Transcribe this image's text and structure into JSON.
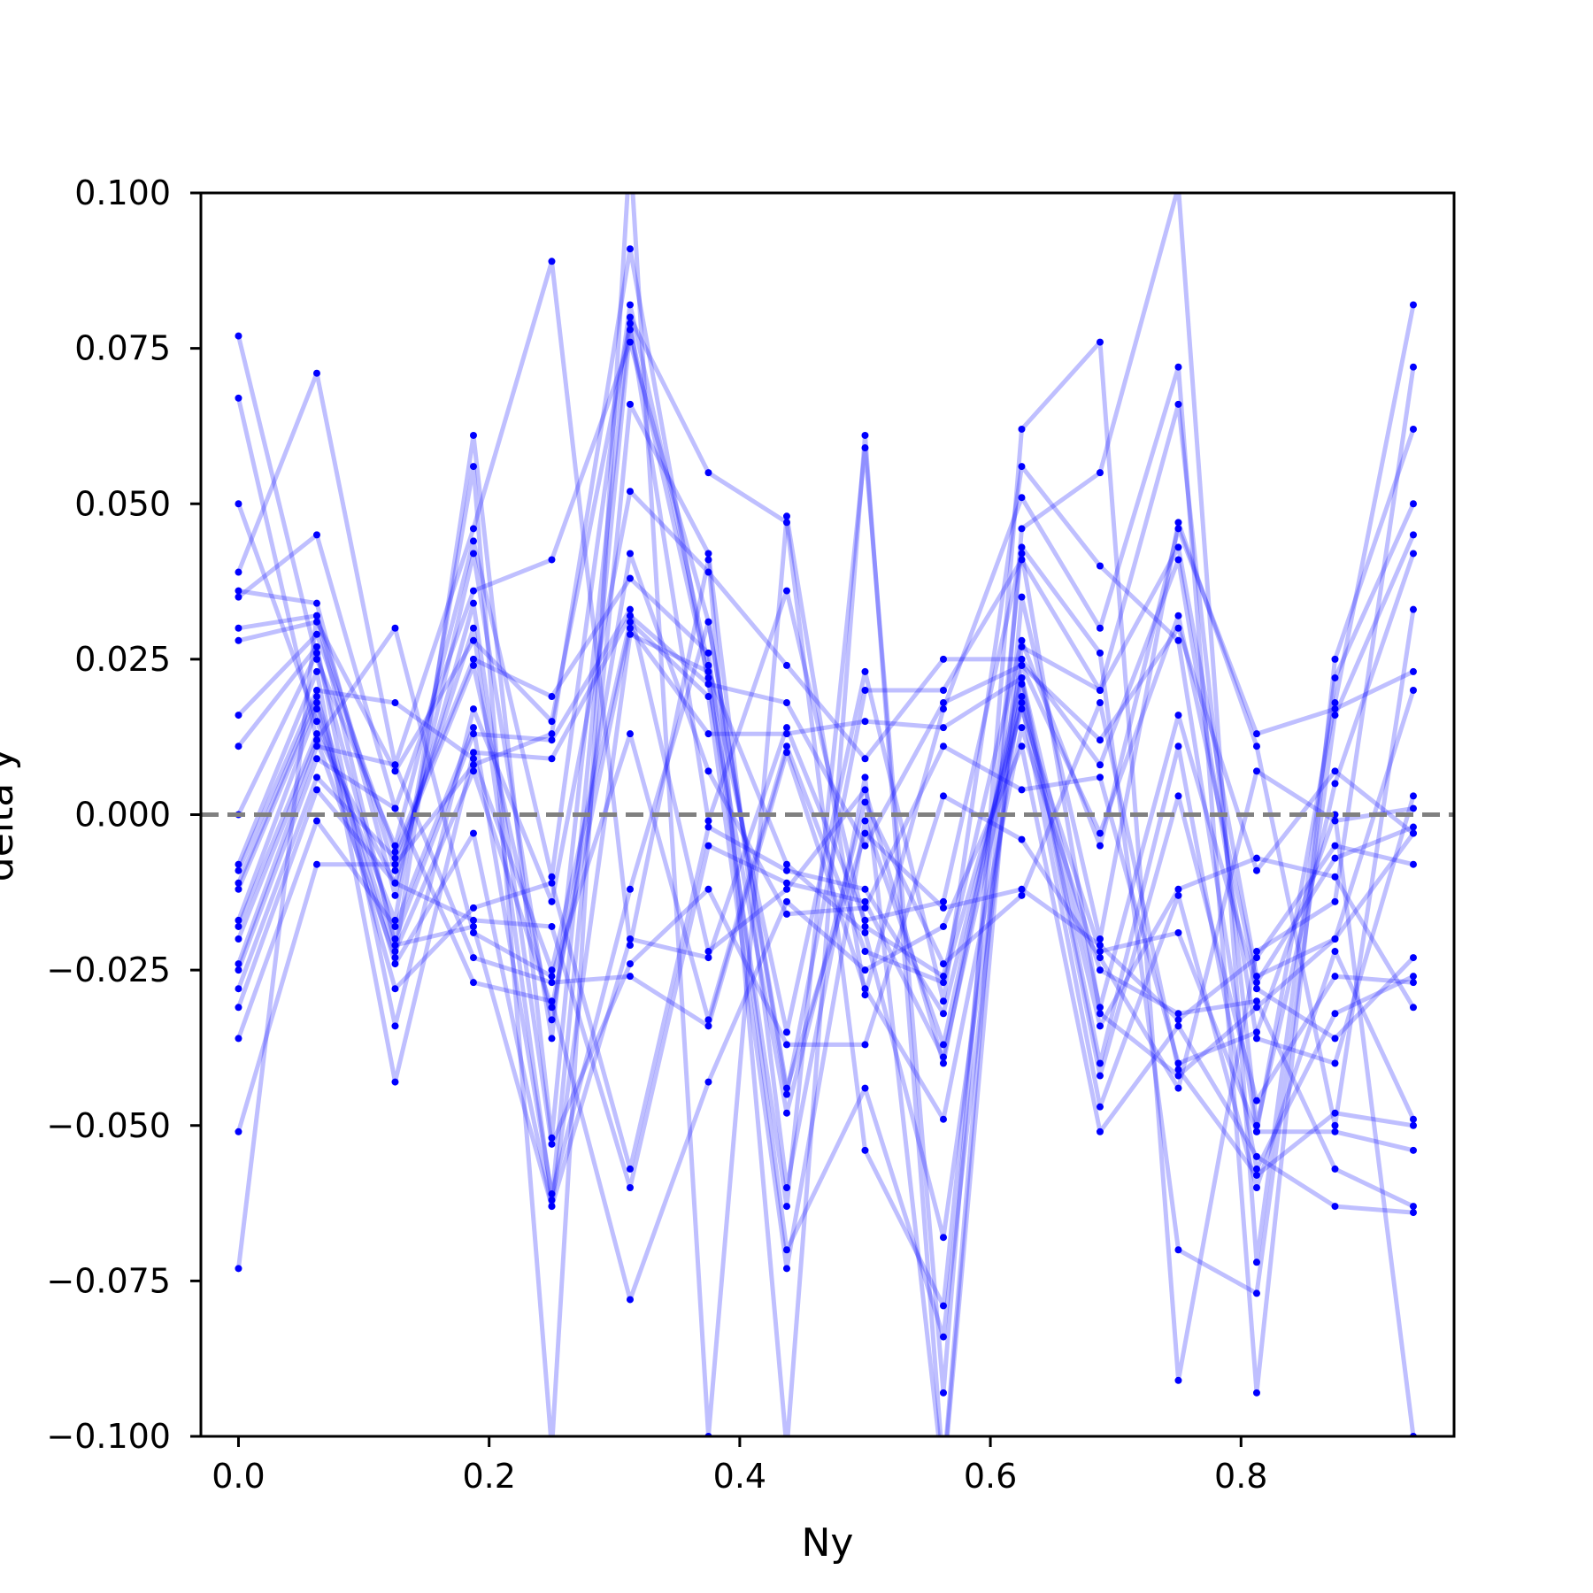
{
  "chart_data": {
    "type": "line",
    "title": "",
    "xlabel": "Ny",
    "ylabel": "delta y",
    "xlim": [
      -0.03,
      0.97
    ],
    "ylim": [
      -0.1,
      0.1
    ],
    "x_ticks": [
      0.0,
      0.2,
      0.4,
      0.6,
      0.8
    ],
    "x_tick_labels": [
      "0.0",
      "0.2",
      "0.4",
      "0.6",
      "0.8"
    ],
    "y_ticks": [
      -0.1,
      -0.075,
      -0.05,
      -0.025,
      0.0,
      0.025,
      0.05,
      0.075,
      0.1
    ],
    "y_tick_labels": [
      "−0.100",
      "−0.075",
      "−0.050",
      "−0.025",
      "0.000",
      "0.025",
      "0.050",
      "0.075",
      "0.100"
    ],
    "grid": false,
    "legend": false,
    "reference_line": {
      "y": 0.0,
      "style": "dashed",
      "color": "#808080"
    },
    "series_color": "#0000ff",
    "line_alpha": 0.25,
    "x": [
      0.0,
      0.0625,
      0.125,
      0.1875,
      0.25,
      0.3125,
      0.375,
      0.4375,
      0.5,
      0.5625,
      0.625,
      0.6875,
      0.75,
      0.8125,
      0.875,
      0.9375
    ],
    "series": [
      {
        "values": [
          0.077,
          0.025,
          -0.005,
          0.044,
          -0.01,
          0.082,
          0.024,
          -0.035,
          0.023,
          -0.03,
          0.056,
          0.04,
          0.028,
          -0.051,
          0.018,
          0.082
        ]
      },
      {
        "values": [
          0.067,
          0.012,
          -0.023,
          0.061,
          -0.052,
          0.078,
          0.022,
          -0.063,
          0.059,
          -0.093,
          0.062,
          0.076,
          -0.091,
          -0.022,
          -0.014,
          0.072
        ]
      },
      {
        "values": [
          0.05,
          0.015,
          -0.017,
          0.056,
          -0.102,
          0.107,
          -0.1,
          0.048,
          -0.029,
          0.017,
          0.051,
          0.03,
          0.072,
          -0.093,
          0.025,
          0.062
        ]
      },
      {
        "values": [
          0.039,
          0.071,
          0.008,
          0.046,
          0.089,
          -0.021,
          0.041,
          -0.102,
          0.061,
          -0.106,
          0.046,
          0.055,
          0.101,
          -0.072,
          0.022,
          0.05
        ]
      },
      {
        "values": [
          0.036,
          0.034,
          -0.013,
          0.042,
          -0.036,
          0.08,
          0.055,
          0.047,
          -0.054,
          -0.079,
          0.043,
          0.026,
          -0.07,
          -0.077,
          0.016,
          0.045
        ]
      },
      {
        "values": [
          0.035,
          0.045,
          0.001,
          0.036,
          0.041,
          0.076,
          0.031,
          -0.045,
          0.02,
          0.02,
          0.041,
          0.02,
          0.066,
          -0.05,
          0.005,
          0.042
        ]
      },
      {
        "values": [
          0.03,
          0.032,
          -0.009,
          0.03,
          -0.062,
          0.066,
          0.042,
          -0.06,
          0.006,
          -0.107,
          0.035,
          -0.02,
          0.047,
          0.011,
          -0.05,
          0.033
        ]
      },
      {
        "values": [
          0.028,
          0.031,
          0.007,
          0.028,
          0.015,
          0.079,
          -0.001,
          0.036,
          -0.018,
          -0.026,
          0.028,
          -0.005,
          0.046,
          0.013,
          0.017,
          0.023
        ]
      },
      {
        "values": [
          0.016,
          0.029,
          -0.006,
          0.025,
          0.019,
          0.038,
          0.026,
          -0.07,
          -0.044,
          -0.084,
          0.027,
          0.02,
          0.043,
          -0.026,
          -0.02,
          0.02
        ]
      },
      {
        "values": [
          0.011,
          0.027,
          -0.034,
          0.017,
          -0.014,
          0.052,
          0.039,
          0.024,
          0.009,
          0.025,
          0.025,
          0.008,
          0.041,
          -0.036,
          -0.04,
          0.003
        ]
      },
      {
        "values": [
          0.0,
          0.026,
          -0.02,
          0.013,
          0.012,
          0.033,
          -0.022,
          -0.012,
          0.004,
          -0.04,
          0.024,
          -0.003,
          0.032,
          -0.027,
          -0.007,
          -0.002
        ]
      },
      {
        "values": [
          -0.008,
          0.023,
          -0.043,
          0.01,
          0.009,
          0.032,
          0.021,
          0.018,
          -0.005,
          0.018,
          0.024,
          0.012,
          0.03,
          -0.009,
          0.007,
          -0.003
        ]
      },
      {
        "values": [
          -0.009,
          0.02,
          0.018,
          0.009,
          -0.025,
          0.031,
          0.019,
          -0.073,
          -0.001,
          -0.037,
          0.022,
          -0.031,
          0.016,
          -0.028,
          -0.036,
          -0.023
        ]
      },
      {
        "values": [
          -0.011,
          0.019,
          -0.022,
          0.007,
          -0.031,
          0.03,
          0.013,
          0.013,
          0.015,
          0.014,
          0.022,
          -0.04,
          0.011,
          -0.057,
          -0.032,
          -0.026
        ]
      },
      {
        "values": [
          -0.012,
          0.018,
          -0.024,
          -0.003,
          -0.063,
          0.029,
          0.023,
          -0.008,
          -0.019,
          -0.068,
          0.021,
          -0.042,
          0.003,
          -0.046,
          -0.026,
          -0.027
        ]
      },
      {
        "values": [
          -0.017,
          0.017,
          -0.028,
          -0.015,
          -0.011,
          -0.057,
          -0.002,
          -0.009,
          -0.012,
          -0.032,
          0.019,
          -0.034,
          -0.012,
          -0.007,
          -0.01,
          -0.031
        ]
      },
      {
        "values": [
          -0.018,
          0.013,
          -0.011,
          -0.017,
          -0.018,
          -0.06,
          -0.005,
          -0.011,
          -0.014,
          -0.039,
          0.018,
          -0.047,
          -0.013,
          -0.06,
          -0.022,
          -0.049
        ]
      },
      {
        "values": [
          -0.02,
          0.012,
          0.03,
          -0.019,
          -0.026,
          0.013,
          -0.033,
          0.011,
          -0.022,
          -0.027,
          0.017,
          -0.022,
          -0.019,
          -0.051,
          -0.051,
          -0.054
        ]
      },
      {
        "values": [
          -0.024,
          0.011,
          0.008,
          -0.023,
          -0.027,
          -0.026,
          -0.034,
          0.01,
          -0.028,
          -0.049,
          0.014,
          -0.025,
          -0.032,
          -0.03,
          -0.057,
          -0.063
        ]
      },
      {
        "values": [
          -0.025,
          0.009,
          0.001,
          -0.027,
          -0.03,
          -0.078,
          -0.043,
          -0.014,
          -0.025,
          -0.018,
          0.011,
          -0.051,
          -0.034,
          -0.055,
          -0.063,
          -0.064
        ]
      },
      {
        "values": [
          -0.028,
          0.006,
          -0.007,
          0.024,
          -0.033,
          0.042,
          0.007,
          -0.016,
          -0.015,
          0.011,
          0.004,
          0.006,
          -0.04,
          -0.035,
          0.0,
          -0.1
        ]
      },
      {
        "values": [
          -0.031,
          0.004,
          -0.011,
          0.034,
          -0.053,
          -0.024,
          -0.012,
          -0.037,
          -0.037,
          0.003,
          -0.004,
          -0.023,
          -0.044,
          0.007,
          -0.001,
          0.001
        ]
      },
      {
        "values": [
          -0.036,
          -0.001,
          -0.018,
          0.014,
          -0.061,
          -0.012,
          0.031,
          -0.044,
          -0.003,
          -0.015,
          -0.012,
          -0.021,
          -0.033,
          -0.023,
          -0.005,
          -0.008
        ]
      },
      {
        "values": [
          -0.051,
          -0.008,
          -0.008,
          0.008,
          0.013,
          0.091,
          0.021,
          -0.048,
          0.002,
          -0.024,
          -0.013,
          0.018,
          -0.041,
          -0.058,
          -0.048,
          -0.05
        ]
      },
      {
        "values": [
          -0.073,
          0.032,
          -0.021,
          -0.018,
          -0.063,
          -0.02,
          -0.023,
          0.014,
          -0.017,
          -0.014,
          0.042,
          -0.032,
          -0.042,
          -0.031,
          -0.02,
          -0.003
        ]
      }
    ]
  }
}
